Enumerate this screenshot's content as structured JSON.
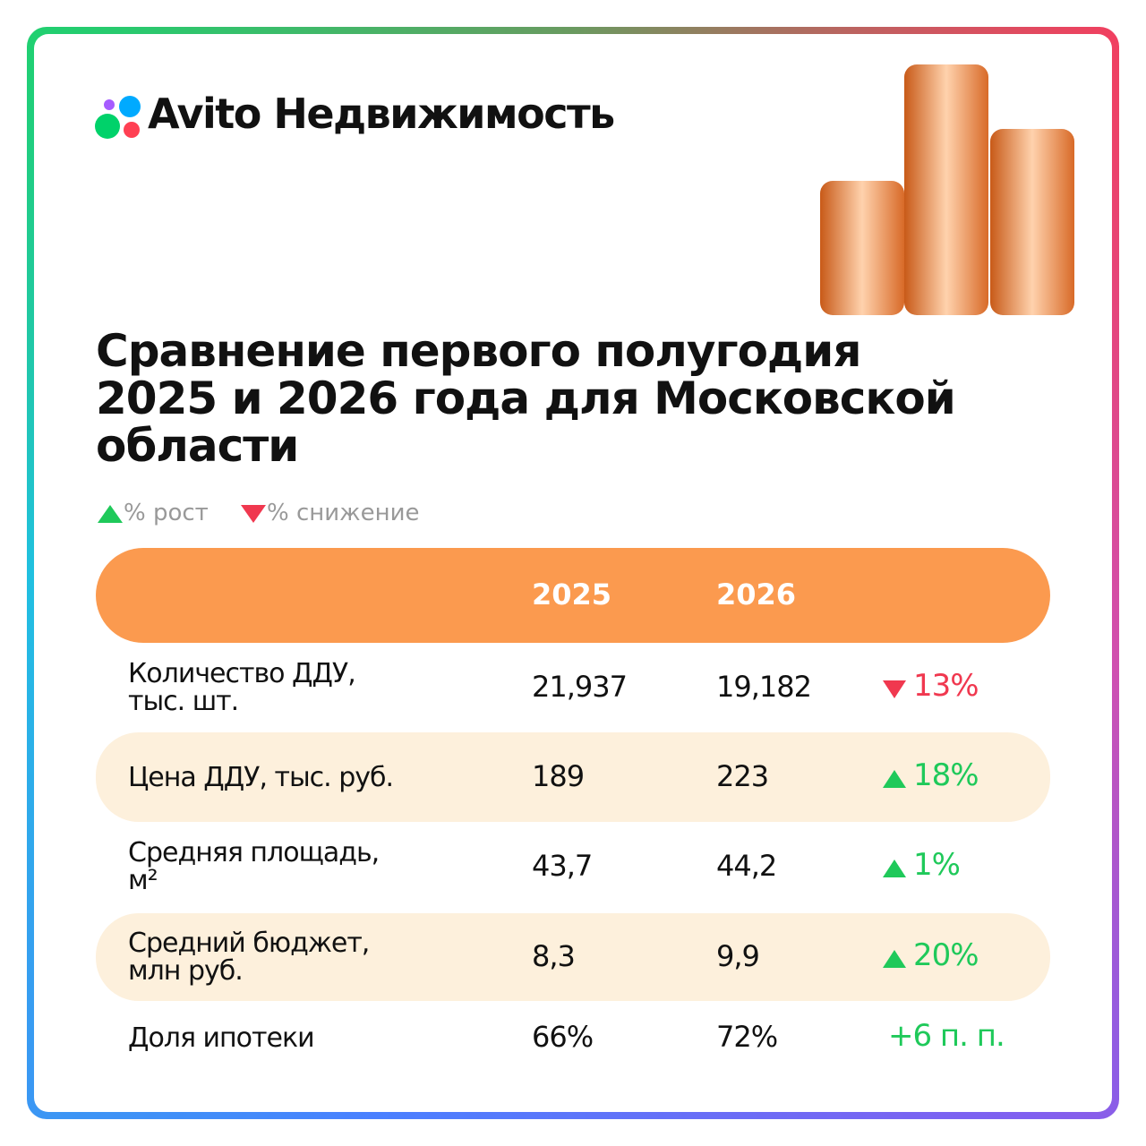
{
  "header": {
    "brand": "Avito Недвижимость"
  },
  "title": "Сравнение первого полугодия 2025 и 2026 года для Московской области",
  "legend": {
    "up": "% рост",
    "down": "% снижение"
  },
  "table": {
    "columns": [
      "2025",
      "2026"
    ],
    "rows": [
      {
        "label": "Количество ДДУ, тыс. шт.",
        "values": [
          "21,937",
          "19,182"
        ],
        "change": "13%",
        "arrow": "down",
        "shaded": false
      },
      {
        "label": "Цена ДДУ, тыс. руб.",
        "values": [
          "189",
          "223"
        ],
        "change": "18%",
        "arrow": "up",
        "shaded": true
      },
      {
        "label": "Средняя площадь, м²",
        "values": [
          "43,7",
          "44,2"
        ],
        "change": "1%",
        "arrow": "up",
        "shaded": false
      },
      {
        "label": "Средний бюджет, млн руб.",
        "values": [
          "8,3",
          "9,9"
        ],
        "change": "20%",
        "arrow": "up",
        "shaded": true
      },
      {
        "label": "Доля ипотеки",
        "values": [
          "66%",
          "72%"
        ],
        "change": "+6 п. п.",
        "arrow": null,
        "shaded": false
      }
    ]
  }
}
